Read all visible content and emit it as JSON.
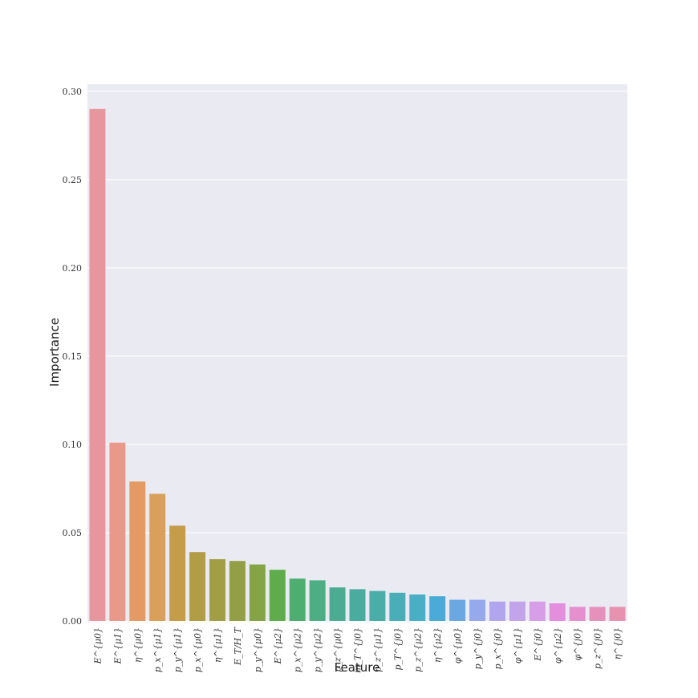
{
  "chart_data": {
    "type": "bar",
    "title": "",
    "xlabel": "Feature",
    "ylabel": "Importance",
    "ylim": [
      0,
      0.304
    ],
    "yticks": [
      "0.00",
      "0.05",
      "0.10",
      "0.15",
      "0.20",
      "0.25",
      "0.30"
    ],
    "ytick_values": [
      0,
      0.05,
      0.1,
      0.15,
      0.2,
      0.25,
      0.3
    ],
    "grid": true,
    "background": "#EAEAF2",
    "categories": [
      "E^{μ0}",
      "E^{μ1}",
      "η^{μ0}",
      "p_x^{μ1}",
      "p_y^{μ1}",
      "p_x^{μ0}",
      "η^{μ1}",
      "E_T/H_T",
      "p_y^{μ0}",
      "E^{μ2}",
      "p_x^{μ2}",
      "p_y^{μ2}",
      "p_z^{μ0}",
      "m_T^{j0}",
      "p_z^{μ1}",
      "p_T^{j0}",
      "p_z^{μ2}",
      "η^{μ2}",
      "φ^{μ0}",
      "p_y^{j0}",
      "p_x^{j0}",
      "φ^{μ1}",
      "E^{j0}",
      "φ^{μ2}",
      "φ^{j0}",
      "p_z^{j0}",
      "η^{j0}"
    ],
    "values": [
      0.29,
      0.101,
      0.079,
      0.072,
      0.054,
      0.039,
      0.035,
      0.034,
      0.032,
      0.029,
      0.024,
      0.023,
      0.019,
      0.018,
      0.017,
      0.016,
      0.015,
      0.014,
      0.012,
      0.012,
      0.011,
      0.011,
      0.011,
      0.01,
      0.008,
      0.008,
      0.008
    ],
    "colors": [
      "#E8969D",
      "#E9998A",
      "#E39A64",
      "#D8A05A",
      "#C49C4A",
      "#B29D47",
      "#A29E45",
      "#939F45",
      "#84A446",
      "#5EAC4B",
      "#4DAE70",
      "#4CAE82",
      "#4BAC92",
      "#4AAC9E",
      "#4AADA8",
      "#4AAEB8",
      "#4AAEC4",
      "#4BAAD6",
      "#6BA8E1",
      "#96A9EA",
      "#B1A5EE",
      "#C3A3EA",
      "#D69EE6",
      "#E38FDE",
      "#E58FCE",
      "#E690BC",
      "#E792AE"
    ]
  }
}
